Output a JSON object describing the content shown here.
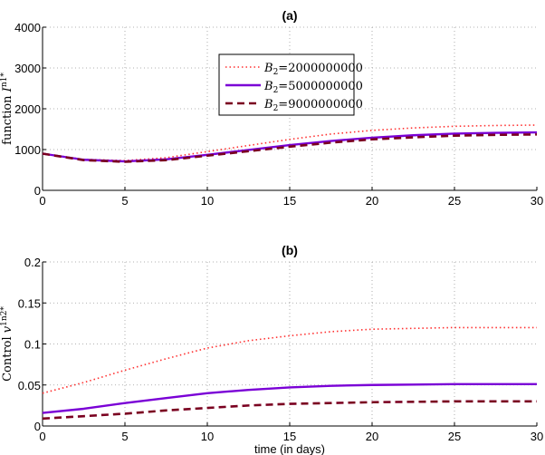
{
  "chart_data": [
    {
      "type": "line",
      "title": "(a)",
      "xlabel": "",
      "ylabel": "function I",
      "ylabel_sup": "n1*",
      "xlim": [
        0,
        30
      ],
      "ylim": [
        0,
        4000
      ],
      "xticks": [
        0,
        5,
        10,
        15,
        20,
        25,
        30
      ],
      "yticks": [
        0,
        1000,
        2000,
        3000,
        4000
      ],
      "grid": true,
      "legend": "bottom-center",
      "x": [
        0,
        2.5,
        5,
        7.5,
        10,
        12.5,
        15,
        17.5,
        20,
        22.5,
        25,
        27.5,
        30
      ],
      "series": [
        {
          "name": "B2=2000000000",
          "label_main": "B",
          "label_sub": "2",
          "label_val": "=2000000000",
          "color": "#ff3030",
          "style": "dotted",
          "values": [
            900,
            760,
            730,
            800,
            950,
            1100,
            1250,
            1380,
            1470,
            1530,
            1570,
            1590,
            1600
          ]
        },
        {
          "name": "B2=5000000000",
          "label_main": "B",
          "label_sub": "2",
          "label_val": "=5000000000",
          "color": "#7a00d6",
          "style": "solid",
          "values": [
            900,
            750,
            710,
            760,
            870,
            990,
            1110,
            1210,
            1290,
            1350,
            1390,
            1410,
            1420
          ]
        },
        {
          "name": "B2=9000000000",
          "label_main": "B",
          "label_sub": "2",
          "label_val": "=9000000000",
          "color": "#7a0020",
          "style": "dashed",
          "values": [
            900,
            740,
            700,
            740,
            850,
            960,
            1070,
            1170,
            1250,
            1300,
            1340,
            1360,
            1370
          ]
        }
      ]
    },
    {
      "type": "line",
      "title": "(b)",
      "xlabel": "time (in days)",
      "ylabel": "Control v",
      "ylabel_sup": "1n2*",
      "xlim": [
        0,
        30
      ],
      "ylim": [
        0,
        0.2
      ],
      "xticks": [
        0,
        5,
        10,
        15,
        20,
        25,
        30
      ],
      "yticks": [
        0,
        0.05,
        0.1,
        0.15,
        0.2
      ],
      "ytick_labels": [
        "0",
        "0.05",
        "0.1",
        "0.15",
        "0.2"
      ],
      "grid": true,
      "x": [
        0,
        2.5,
        5,
        7.5,
        10,
        12.5,
        15,
        17.5,
        20,
        22.5,
        25,
        27.5,
        30
      ],
      "series": [
        {
          "name": "B2=2000000000",
          "color": "#ff3030",
          "style": "dotted",
          "values": [
            0.04,
            0.053,
            0.068,
            0.082,
            0.095,
            0.104,
            0.11,
            0.115,
            0.118,
            0.119,
            0.12,
            0.12,
            0.12
          ]
        },
        {
          "name": "B2=5000000000",
          "color": "#7a00d6",
          "style": "solid",
          "values": [
            0.016,
            0.021,
            0.028,
            0.034,
            0.04,
            0.044,
            0.047,
            0.049,
            0.05,
            0.0505,
            0.051,
            0.051,
            0.051
          ]
        },
        {
          "name": "B2=9000000000",
          "color": "#7a0020",
          "style": "dashed",
          "values": [
            0.009,
            0.012,
            0.015,
            0.019,
            0.022,
            0.025,
            0.027,
            0.028,
            0.029,
            0.0295,
            0.03,
            0.03,
            0.03
          ]
        }
      ]
    }
  ]
}
